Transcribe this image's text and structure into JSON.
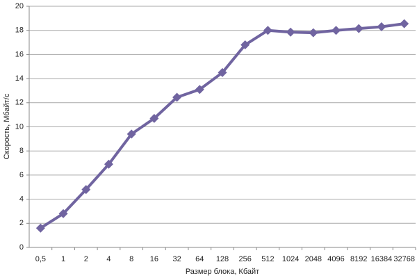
{
  "chart_data": {
    "type": "line",
    "x_label": "Размер блока, Кбайт",
    "y_label": "Скорость, Мбайт/с",
    "categories": [
      "0,5",
      "1",
      "2",
      "4",
      "8",
      "16",
      "32",
      "64",
      "128",
      "256",
      "512",
      "1024",
      "2048",
      "4096",
      "8192",
      "16384",
      "32768"
    ],
    "values": [
      1.6,
      2.8,
      4.8,
      6.9,
      9.4,
      10.7,
      12.45,
      13.1,
      14.5,
      16.8,
      18.0,
      17.85,
      17.8,
      18.0,
      18.15,
      18.3,
      18.55
    ],
    "color": "#7064a0",
    "ylim": [
      0,
      20
    ],
    "yticks": [
      0,
      2,
      4,
      6,
      8,
      10,
      12,
      14,
      16,
      18,
      20
    ],
    "grid": true
  }
}
